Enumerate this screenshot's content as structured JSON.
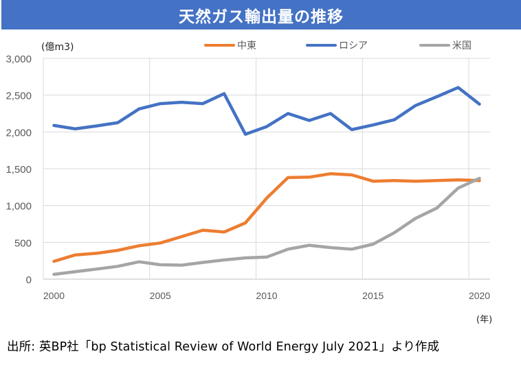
{
  "title": "天然ガス輸出量の推移",
  "footer": "出所: 英BP社「bp Statistical Review of World Energy July 2021」より作成",
  "chart_data": {
    "type": "line",
    "title": "天然ガス輸出量の推移",
    "ylabel": "(億m3)",
    "xlabel": "(年)",
    "ylim": [
      0,
      3000
    ],
    "yticks": [
      0,
      500,
      1000,
      1500,
      2000,
      2500,
      3000
    ],
    "ytick_labels": [
      "0",
      "500",
      "1,000",
      "1,500",
      "2,000",
      "2,500",
      "3,000"
    ],
    "xtick_labels": [
      "2000",
      "2005",
      "2010",
      "2015",
      "2020"
    ],
    "x": [
      2000,
      2001,
      2002,
      2003,
      2004,
      2005,
      2006,
      2007,
      2008,
      2009,
      2010,
      2011,
      2012,
      2013,
      2014,
      2015,
      2016,
      2017,
      2018,
      2019,
      2020
    ],
    "grid": true,
    "legend_position": "top-right",
    "series": [
      {
        "name": "中東",
        "color": "#ED7D31",
        "values": [
          242,
          329,
          351,
          391,
          454,
          491,
          578,
          665,
          640,
          764,
          1100,
          1380,
          1385,
          1432,
          1416,
          1330,
          1339,
          1330,
          1339,
          1348,
          1339
        ]
      },
      {
        "name": "ロシア",
        "color": "#4472C4",
        "values": [
          2088,
          2041,
          2081,
          2125,
          2312,
          2384,
          2403,
          2384,
          2519,
          1969,
          2072,
          2250,
          2156,
          2250,
          2031,
          2094,
          2165,
          2359,
          2478,
          2603,
          2378
        ]
      },
      {
        "name": "米国",
        "color": "#A5A5A5",
        "values": [
          65,
          102,
          137,
          174,
          236,
          196,
          190,
          227,
          261,
          289,
          300,
          407,
          460,
          429,
          407,
          475,
          631,
          826,
          966,
          1237,
          1370
        ]
      }
    ]
  }
}
